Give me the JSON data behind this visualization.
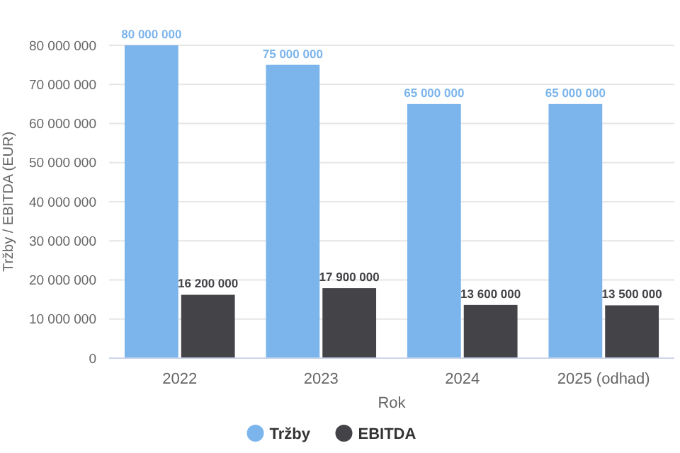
{
  "chart_data": {
    "type": "bar",
    "categories": [
      "2022",
      "2023",
      "2024",
      "2025 (odhad)"
    ],
    "xlabel": "Rok",
    "ylabel": "Tržby / EBITDA (EUR)",
    "series": [
      {
        "name": "Tržby",
        "color": "#7cb5ec",
        "values": [
          80000000,
          75000000,
          65000000,
          65000000
        ]
      },
      {
        "name": "EBITDA",
        "color": "#434348",
        "values": [
          16200000,
          17900000,
          13600000,
          13500000
        ]
      }
    ],
    "value_labels": [
      [
        "80 000 000",
        "75 000 000",
        "65 000 000",
        "65 000 000"
      ],
      [
        "16 200 000",
        "17 900 000",
        "13 600 000",
        "13 500 000"
      ]
    ],
    "ylim": [
      0,
      80000000
    ],
    "yticks": [
      {
        "value": 0,
        "label": "0"
      },
      {
        "value": 10000000,
        "label": "10 000 000"
      },
      {
        "value": 20000000,
        "label": "20 000 000"
      },
      {
        "value": 30000000,
        "label": "30 000 000"
      },
      {
        "value": 40000000,
        "label": "40 000 000"
      },
      {
        "value": 50000000,
        "label": "50 000 000"
      },
      {
        "value": 60000000,
        "label": "60 000 000"
      },
      {
        "value": 70000000,
        "label": "70 000 000"
      },
      {
        "value": 80000000,
        "label": "80 000 000"
      }
    ],
    "grid": "y",
    "legend": "bottom"
  }
}
